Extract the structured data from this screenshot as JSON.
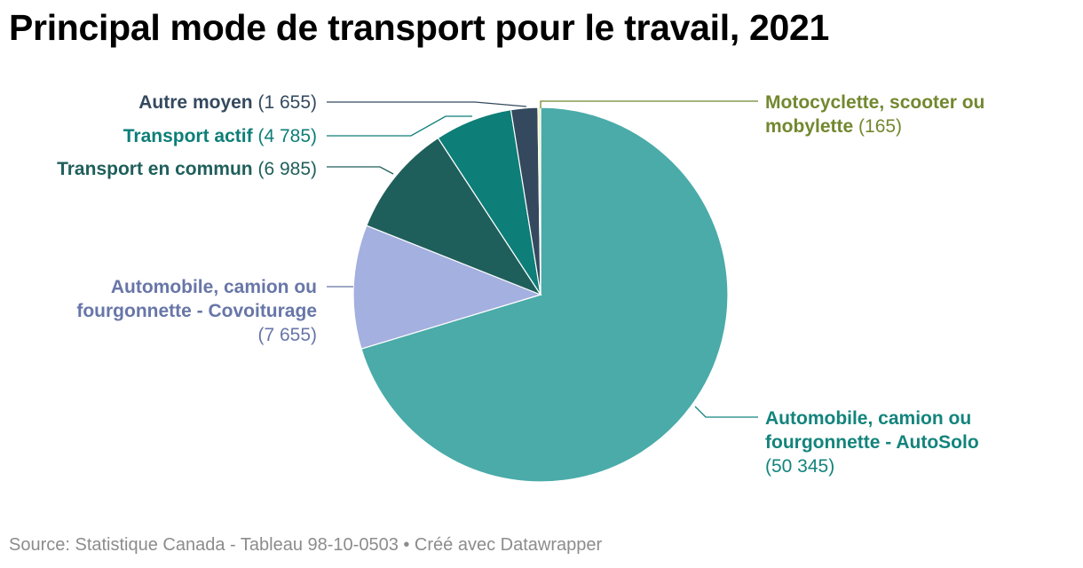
{
  "chart_data": {
    "type": "pie",
    "title": "Principal mode de transport pour le travail, 2021",
    "source": "Source: Statistique Canada - Tableau 98-10-0503 • Créé avec Datawrapper",
    "slices": [
      {
        "id": "autosolo",
        "lines": [
          "Automobile, camion ou",
          "fourgonnette - AutoSolo"
        ],
        "value": 50345,
        "value_label": "(50 345)",
        "color": "#4aaba9",
        "label_color": "#13847c"
      },
      {
        "id": "covoiturage",
        "lines": [
          "Automobile, camion ou",
          "fourgonnette - Covoiturage"
        ],
        "value": 7655,
        "value_label": "(7 655)",
        "color": "#a4b0df",
        "label_color": "#6876a8"
      },
      {
        "id": "transport-en-commun",
        "lines": [
          "Transport en commun"
        ],
        "value": 6985,
        "value_label": "(6 985)",
        "color": "#1f5f5b",
        "label_color": "#1f5f5b"
      },
      {
        "id": "transport-actif",
        "lines": [
          "Transport actif"
        ],
        "value": 4785,
        "value_label": "(4 785)",
        "color": "#0d7e78",
        "label_color": "#0d7e78"
      },
      {
        "id": "autre-moyen",
        "lines": [
          "Autre moyen"
        ],
        "value": 1655,
        "value_label": "(1 655)",
        "color": "#34495e",
        "label_color": "#34495e"
      },
      {
        "id": "motocyclette",
        "lines": [
          "Motocyclette, scooter ou",
          "mobylette"
        ],
        "value": 165,
        "value_label": "(165)",
        "color": "#eef2b4",
        "label_color": "#72882f"
      }
    ]
  }
}
